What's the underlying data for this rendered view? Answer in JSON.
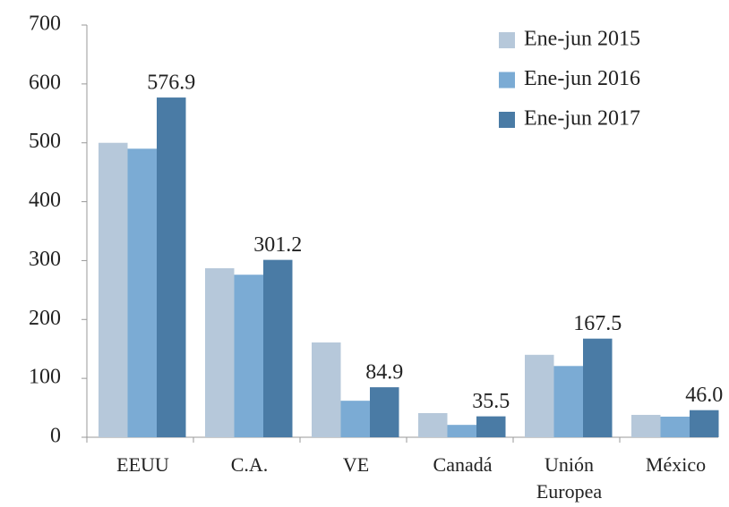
{
  "chart_data": {
    "type": "bar",
    "categories": [
      "EEUU",
      "C.A.",
      "VE",
      "Canadá",
      "Unión Europea",
      "México"
    ],
    "series": [
      {
        "name": "Ene-jun 2015",
        "color": "#b6c8da",
        "values": [
          500,
          287,
          161,
          41,
          140,
          38
        ]
      },
      {
        "name": "Ene-jun 2016",
        "color": "#7babd4",
        "values": [
          490,
          276,
          62,
          21,
          121,
          35
        ]
      },
      {
        "name": "Ene-jun 2017",
        "color": "#4a7ba5",
        "values": [
          576.9,
          301.2,
          84.9,
          35.5,
          167.5,
          46.0
        ],
        "value_labels": [
          "576.9",
          "301.2",
          "84.9",
          "35.5",
          "167.5",
          "46.0"
        ]
      }
    ],
    "ylim": [
      0,
      700
    ],
    "yticks": [
      0,
      100,
      200,
      300,
      400,
      500,
      600,
      700
    ],
    "legend": "top-right",
    "grid": false
  }
}
